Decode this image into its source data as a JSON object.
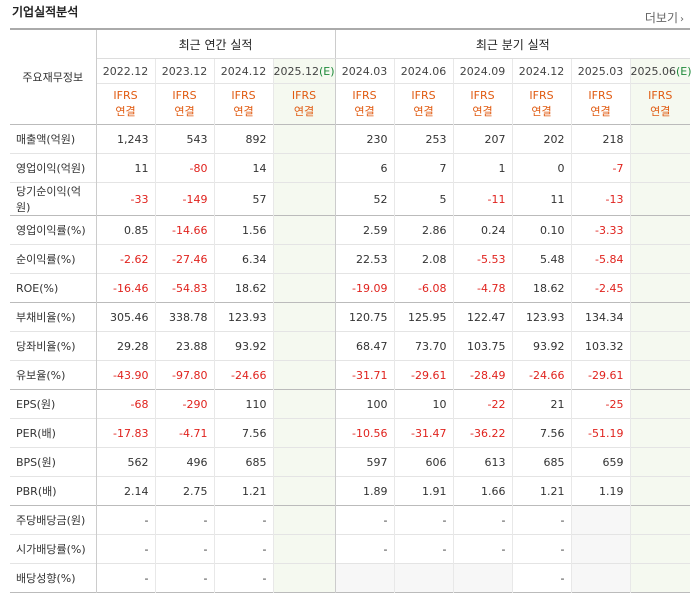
{
  "title": "기업실적분석",
  "more_label": "더보기",
  "header": {
    "row_label": "주요재무정보",
    "annual_group": "최근 연간 실적",
    "quarter_group": "최근 분기 실적",
    "annual_periods": [
      "2022.12",
      "2023.12",
      "2024.12",
      "2025.12(E)"
    ],
    "quarter_periods": [
      "2024.03",
      "2024.06",
      "2024.09",
      "2024.12",
      "2025.03",
      "2025.06(E)"
    ],
    "ifrs_line1": "IFRS",
    "ifrs_line2": "연결"
  },
  "rows": [
    {
      "label": "매출액(억원)",
      "annual": [
        "1,243",
        "543",
        "892",
        ""
      ],
      "quarter": [
        "230",
        "253",
        "207",
        "202",
        "218",
        ""
      ]
    },
    {
      "label": "영업이익(억원)",
      "annual": [
        "11",
        "-80",
        "14",
        ""
      ],
      "quarter": [
        "6",
        "7",
        "1",
        "0",
        "-7",
        ""
      ]
    },
    {
      "label": "당기순이익(억원)",
      "annual": [
        "-33",
        "-149",
        "57",
        ""
      ],
      "quarter": [
        "52",
        "5",
        "-11",
        "11",
        "-13",
        ""
      ]
    },
    {
      "label": "영업이익률(%)",
      "annual": [
        "0.85",
        "-14.66",
        "1.56",
        ""
      ],
      "quarter": [
        "2.59",
        "2.86",
        "0.24",
        "0.10",
        "-3.33",
        ""
      ]
    },
    {
      "label": "순이익률(%)",
      "annual": [
        "-2.62",
        "-27.46",
        "6.34",
        ""
      ],
      "quarter": [
        "22.53",
        "2.08",
        "-5.53",
        "5.48",
        "-5.84",
        ""
      ]
    },
    {
      "label": "ROE(%)",
      "annual": [
        "-16.46",
        "-54.83",
        "18.62",
        ""
      ],
      "quarter": [
        "-19.09",
        "-6.08",
        "-4.78",
        "18.62",
        "-2.45",
        ""
      ]
    },
    {
      "label": "부채비율(%)",
      "annual": [
        "305.46",
        "338.78",
        "123.93",
        ""
      ],
      "quarter": [
        "120.75",
        "125.95",
        "122.47",
        "123.93",
        "134.34",
        ""
      ]
    },
    {
      "label": "당좌비율(%)",
      "annual": [
        "29.28",
        "23.88",
        "93.92",
        ""
      ],
      "quarter": [
        "68.47",
        "73.70",
        "103.75",
        "93.92",
        "103.32",
        ""
      ]
    },
    {
      "label": "유보율(%)",
      "annual": [
        "-43.90",
        "-97.80",
        "-24.66",
        ""
      ],
      "quarter": [
        "-31.71",
        "-29.61",
        "-28.49",
        "-24.66",
        "-29.61",
        ""
      ]
    },
    {
      "label": "EPS(원)",
      "annual": [
        "-68",
        "-290",
        "110",
        ""
      ],
      "quarter": [
        "100",
        "10",
        "-22",
        "21",
        "-25",
        ""
      ]
    },
    {
      "label": "PER(배)",
      "annual": [
        "-17.83",
        "-4.71",
        "7.56",
        ""
      ],
      "quarter": [
        "-10.56",
        "-31.47",
        "-36.22",
        "7.56",
        "-51.19",
        ""
      ]
    },
    {
      "label": "BPS(원)",
      "annual": [
        "562",
        "496",
        "685",
        ""
      ],
      "quarter": [
        "597",
        "606",
        "613",
        "685",
        "659",
        ""
      ]
    },
    {
      "label": "PBR(배)",
      "annual": [
        "2.14",
        "2.75",
        "1.21",
        ""
      ],
      "quarter": [
        "1.89",
        "1.91",
        "1.66",
        "1.21",
        "1.19",
        ""
      ]
    },
    {
      "label": "주당배당금(원)",
      "annual": [
        "-",
        "-",
        "-",
        ""
      ],
      "quarter": [
        "-",
        "-",
        "-",
        "-",
        "",
        ""
      ]
    },
    {
      "label": "시가배당률(%)",
      "annual": [
        "-",
        "-",
        "-",
        ""
      ],
      "quarter": [
        "-",
        "-",
        "-",
        "-",
        "",
        ""
      ]
    },
    {
      "label": "배당성향(%)",
      "annual": [
        "-",
        "-",
        "-",
        ""
      ],
      "quarter": [
        "",
        "",
        "",
        "-",
        "",
        ""
      ]
    }
  ],
  "colors": {
    "negative": "#e0231e",
    "ifrs": "#e05a10",
    "estimate": "#1f8a3b"
  }
}
